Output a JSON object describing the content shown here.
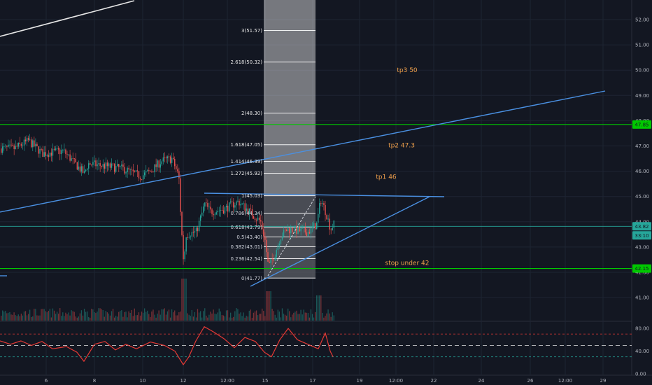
{
  "chart_data": {
    "type": "candlestick",
    "title": "",
    "colors": {
      "background": "#131722",
      "grid": "#1e2432",
      "up": "#26a69a",
      "down": "#ef5350",
      "support_line": "#00c800",
      "trendline": "#4a90e2",
      "fib_zone": "#ffffff",
      "annotation": "#f0a04b",
      "oscillator": "#e53935",
      "white_line": "#e6e6e6"
    },
    "y_axis": {
      "range": [
        41.2,
        52.5
      ],
      "ticks": [
        "52.00",
        "51.00",
        "50.00",
        "49.00",
        "48.00",
        "47.00",
        "46.00",
        "45.00",
        "44.00",
        "43.00",
        "42.00",
        "41.00"
      ],
      "tick_values": [
        52,
        51,
        50,
        49,
        48,
        47,
        46,
        45,
        44,
        43,
        42,
        41
      ]
    },
    "x_axis": {
      "ticks": [
        "6",
        "8",
        "10",
        "12",
        "12:00",
        "15",
        "17",
        "19",
        "12:00",
        "22",
        "24",
        "26",
        "12:00",
        "29"
      ]
    },
    "price_labels": [
      {
        "text": "47.85",
        "value": 47.85,
        "color": "#00c800"
      },
      {
        "text": "43.82",
        "value": 43.82,
        "color": "#26a69a"
      },
      {
        "text": "33:10",
        "value": 43.55,
        "color": "#26a69a"
      },
      {
        "text": "42.15",
        "value": 42.15,
        "color": "#00c800"
      }
    ],
    "horizontal_lines": [
      {
        "value": 47.85,
        "color": "#00c800"
      },
      {
        "value": 42.15,
        "color": "#00c800"
      },
      {
        "value": 43.82,
        "color": "#26a69a"
      }
    ],
    "fib_levels": [
      {
        "label": "0(41.77)",
        "value": 41.77
      },
      {
        "label": "0.236(42.54)",
        "value": 42.54
      },
      {
        "label": "0.382(43.01)",
        "value": 43.01
      },
      {
        "label": "0.5(43.40)",
        "value": 43.4
      },
      {
        "label": "0.618(43.79)",
        "value": 43.79
      },
      {
        "label": "0.786(44.34)",
        "value": 44.34
      },
      {
        "label": "1(45.03)",
        "value": 45.03
      },
      {
        "label": "1.272(45.92)",
        "value": 45.92
      },
      {
        "label": "1.414(46.39)",
        "value": 46.39
      },
      {
        "label": "1.618(47.05)",
        "value": 47.05
      },
      {
        "label": "2(48.30)",
        "value": 48.3
      },
      {
        "label": "2.618(50.32)",
        "value": 50.32
      },
      {
        "label": "3(51.57)",
        "value": 51.57
      }
    ],
    "annotations": [
      {
        "text": "tp3 50",
        "value": 50.0
      },
      {
        "text": "tp2 47.3",
        "value": 47.03
      },
      {
        "text": "tp1 46",
        "value": 45.78
      },
      {
        "text": "stop under 42",
        "value": 42.38
      }
    ],
    "oscillator": {
      "ticks": [
        "80.00",
        "40.00",
        "0.00"
      ],
      "tick_values": [
        80,
        40,
        0
      ],
      "range": [
        0,
        90
      ],
      "levels": [
        70,
        50,
        30
      ]
    }
  }
}
